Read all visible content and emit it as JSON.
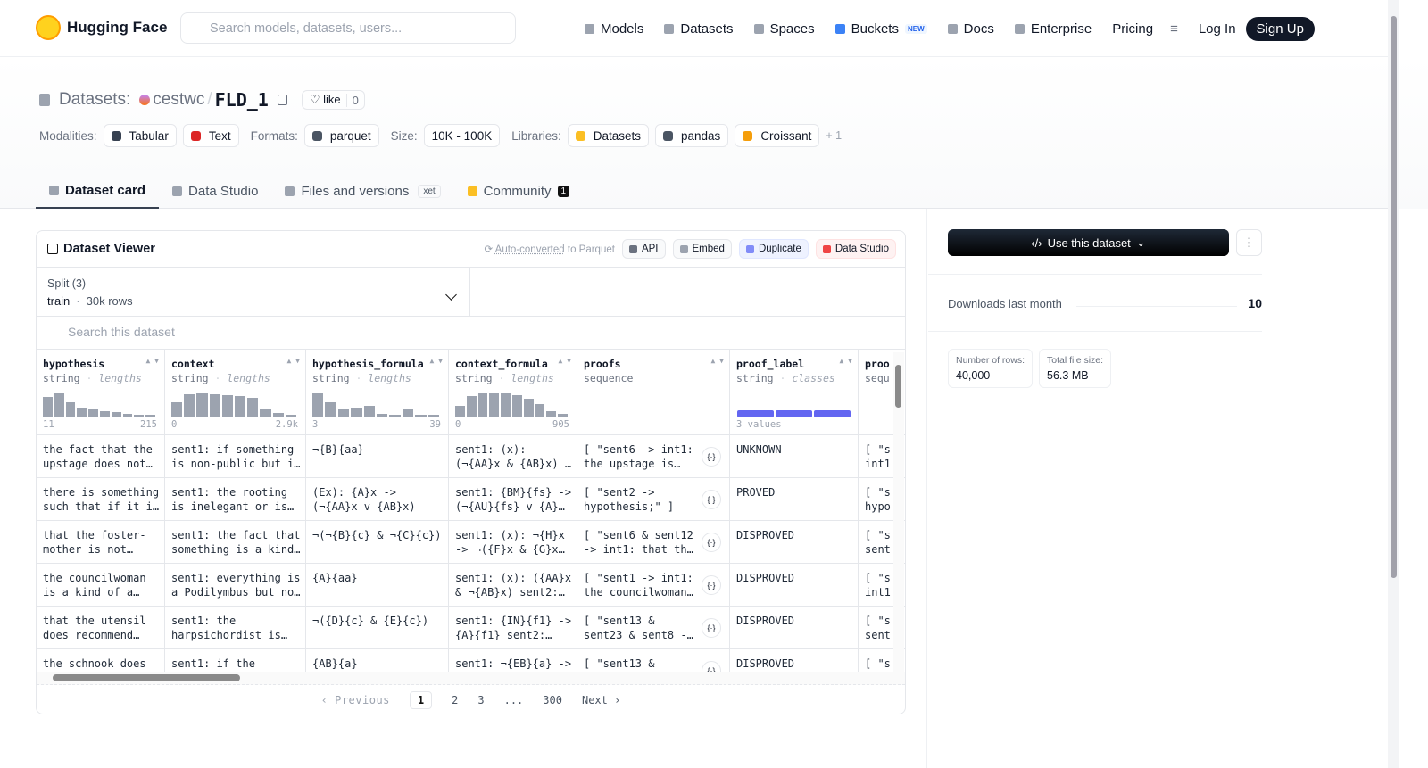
{
  "header": {
    "brand": "Hugging Face",
    "search_placeholder": "Search models, datasets, users...",
    "nav": [
      {
        "label": "Models"
      },
      {
        "label": "Datasets"
      },
      {
        "label": "Spaces"
      },
      {
        "label": "Buckets",
        "badge": "NEW"
      },
      {
        "label": "Docs"
      },
      {
        "label": "Enterprise"
      },
      {
        "label": "Pricing"
      }
    ],
    "login": "Log In",
    "signup": "Sign Up"
  },
  "repo": {
    "kind": "Datasets:",
    "owner": "cestwc",
    "separator": "/",
    "name": "FLD_1",
    "like": "like",
    "likes": 0
  },
  "tags": [
    {
      "label": "Modalities:",
      "items": [
        "Tabular",
        "Text"
      ]
    },
    {
      "label": "Formats:",
      "items": [
        "parquet"
      ]
    },
    {
      "label": "Size:",
      "items": [
        "10K - 100K"
      ]
    },
    {
      "label": "Libraries:",
      "items": [
        "Datasets",
        "pandas",
        "Croissant"
      ],
      "more": "+ 1"
    }
  ],
  "tabs": [
    {
      "label": "Dataset card",
      "active": true
    },
    {
      "label": "Data Studio"
    },
    {
      "label": "Files and versions",
      "badge": "xet"
    },
    {
      "label": "Community",
      "count": 1
    }
  ],
  "viewer": {
    "title": "Dataset Viewer",
    "auto_converted": "Auto-converted",
    "to_parquet": "to Parquet",
    "buttons": [
      "API",
      "Embed",
      "Duplicate",
      "Data Studio"
    ],
    "split_label": "Split (3)",
    "split": "train",
    "dot": "·",
    "rows_count": "30k rows",
    "search_placeholder": "Search this dataset",
    "columns": [
      {
        "name": "hypothesis",
        "type": "string",
        "kind": "lengths",
        "min": "11",
        "max": "215",
        "histogram": [
          0.85,
          1,
          0.6,
          0.38,
          0.3,
          0.25,
          0.18,
          0.1,
          0.08,
          0.06
        ]
      },
      {
        "name": "context",
        "type": "string",
        "kind": "lengths",
        "min": "0",
        "max": "2.9k",
        "histogram": [
          0.6,
          0.95,
          1,
          0.95,
          0.92,
          0.9,
          0.82,
          0.35,
          0.15,
          0.06
        ]
      },
      {
        "name": "hypothesis_formula",
        "type": "string",
        "kind": "lengths",
        "min": "3",
        "max": "39",
        "histogram": [
          1,
          0.6,
          0.35,
          0.4,
          0.45,
          0.1,
          0.08,
          0.35,
          0.08,
          0.06
        ]
      },
      {
        "name": "context_formula",
        "type": "string",
        "kind": "lengths",
        "min": "0",
        "max": "905",
        "histogram": [
          0.45,
          0.9,
          1,
          1,
          1,
          0.92,
          0.78,
          0.55,
          0.25,
          0.1
        ]
      },
      {
        "name": "proofs",
        "type": "sequence"
      },
      {
        "name": "proof_label",
        "type": "string",
        "kind": "classes",
        "classes": "3 values"
      },
      {
        "name": "proo",
        "type": "sequ"
      }
    ],
    "rows": [
      [
        "the fact that the\nupstage does not…",
        "sent1: if something\nis non-public but i…",
        "¬{B}{aa}",
        "sent1: (x):\n(¬{AA}x & {AB}x) …",
        "[ \"sent6 -> int1:\nthe upstage is…",
        "UNKNOWN",
        "[ \"s\nint1"
      ],
      [
        "there is something\nsuch that if it i…",
        "sent1: the rooting\nis inelegant or is…",
        "(Ex): {A}x ->\n(¬{AA}x v {AB}x)",
        "sent1: {BM}{fs} ->\n(¬{AU}{fs} v {A}…",
        "[ \"sent2 ->\nhypothesis;\" ]",
        "PROVED",
        "[ \"s\nhypo"
      ],
      [
        "that the foster-\nmother is not…",
        "sent1: the fact that\nsomething is a kind…",
        "¬(¬{B}{c} & ¬{C}{c})",
        "sent1: (x): ¬{H}x\n-> ¬({F}x & {G}x…",
        "[ \"sent6 & sent12\n-> int1: that th…",
        "DISPROVED",
        "[ \"s\nsent"
      ],
      [
        "the councilwoman\nis a kind of a…",
        "sent1: everything is\na Podilymbus but no…",
        "{A}{aa}",
        "sent1: (x): ({AA}x\n& ¬{AB}x) sent2:…",
        "[ \"sent1 -> int1:\nthe councilwoman…",
        "DISPROVED",
        "[ \"s\nint1"
      ],
      [
        "that the utensil\ndoes recommend…",
        "sent1: the\nharpsichordist is…",
        "¬({D}{c} & {E}{c})",
        "sent1: {IN}{f1} ->\n{A}{f1} sent2:…",
        "[ \"sent13 &\nsent23 & sent8 -…",
        "DISPROVED",
        "[ \"s\nsent"
      ],
      [
        "the schnook does",
        "sent1: if the",
        "{AB}{a}",
        "sent1: ¬{EB}{a} ->",
        "[ \"sent13 &",
        "DISPROVED",
        "[ \"s"
      ]
    ],
    "pagination": {
      "previous": "Previous",
      "pages": [
        "1",
        "2",
        "3",
        "...",
        "300"
      ],
      "next": "Next"
    }
  },
  "sidebar": {
    "use_button": "Use this dataset",
    "downloads_label": "Downloads last month",
    "downloads": 10,
    "stats": [
      {
        "label": "Number of rows:",
        "value": "40,000"
      },
      {
        "label": "Total file size:",
        "value": "56.3 MB"
      }
    ]
  }
}
